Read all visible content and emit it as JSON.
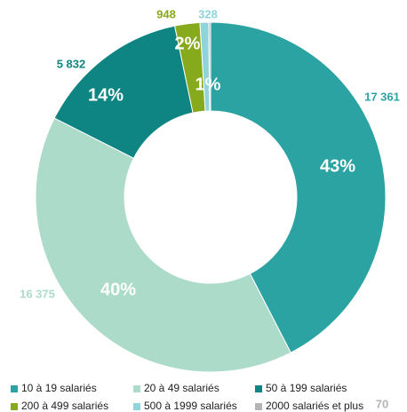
{
  "chart_data": {
    "type": "pie",
    "donut": true,
    "categories": [
      "10 à 19 salariés",
      "20 à 49 salariés",
      "50 à 199 salariés",
      "200 à 499  salariés",
      "500 à 1999 salariés",
      "2000 salariés et plus"
    ],
    "values": [
      17361,
      16375,
      5832,
      948,
      328,
      70
    ],
    "value_labels": [
      "17 361",
      "16 375",
      "5 832",
      "948",
      "328",
      "70"
    ],
    "percent_labels": [
      "43%",
      "40%",
      "14%",
      "2%",
      "1%",
      null
    ],
    "colors": [
      "#2ba3a3",
      "#acdcc9",
      "#0e8582",
      "#87a91c",
      "#8fd4da",
      "#b4b4b4"
    ],
    "legend": "bottom"
  }
}
